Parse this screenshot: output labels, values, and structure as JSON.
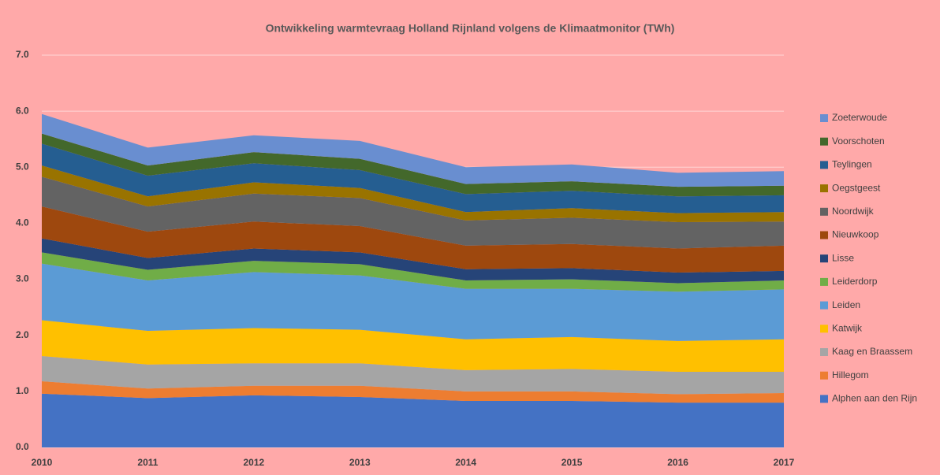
{
  "chart_data": {
    "type": "stacked-area",
    "title": "Ontwikkeling warmtevraag Holland Rijnland volgens de Klimaatmonitor (TWh)",
    "categories": [
      "2010",
      "2011",
      "2012",
      "2013",
      "2014",
      "2015",
      "2016",
      "2017"
    ],
    "series": [
      {
        "name": "Alphen aan den Rijn",
        "color": "#4472c4",
        "values": [
          0.96,
          0.88,
          0.93,
          0.9,
          0.83,
          0.83,
          0.8,
          0.8
        ]
      },
      {
        "name": "Hillegom",
        "color": "#ed7d31",
        "values": [
          0.22,
          0.17,
          0.17,
          0.2,
          0.17,
          0.17,
          0.15,
          0.17
        ]
      },
      {
        "name": "Kaag en Braassem",
        "color": "#a5a5a5",
        "values": [
          0.45,
          0.43,
          0.4,
          0.4,
          0.38,
          0.4,
          0.4,
          0.38
        ]
      },
      {
        "name": "Katwijk",
        "color": "#ffc000",
        "values": [
          0.64,
          0.6,
          0.63,
          0.6,
          0.55,
          0.57,
          0.55,
          0.58
        ]
      },
      {
        "name": "Leiden",
        "color": "#5b9bd5",
        "values": [
          1.01,
          0.9,
          1.0,
          0.97,
          0.9,
          0.86,
          0.88,
          0.89
        ]
      },
      {
        "name": "Leiderdorp",
        "color": "#70ad47",
        "values": [
          0.2,
          0.19,
          0.2,
          0.2,
          0.15,
          0.17,
          0.15,
          0.16
        ]
      },
      {
        "name": "Lisse",
        "color": "#264478",
        "values": [
          0.25,
          0.21,
          0.22,
          0.21,
          0.2,
          0.2,
          0.19,
          0.17
        ]
      },
      {
        "name": "Nieuwkoop",
        "color": "#9e480e",
        "values": [
          0.57,
          0.47,
          0.48,
          0.47,
          0.42,
          0.43,
          0.43,
          0.45
        ]
      },
      {
        "name": "Noordwijk",
        "color": "#636363",
        "values": [
          0.53,
          0.45,
          0.5,
          0.5,
          0.45,
          0.47,
          0.47,
          0.43
        ]
      },
      {
        "name": "Oegstgeest",
        "color": "#997300",
        "values": [
          0.2,
          0.18,
          0.2,
          0.18,
          0.15,
          0.17,
          0.16,
          0.17
        ]
      },
      {
        "name": "Teylingen",
        "color": "#255e91",
        "values": [
          0.39,
          0.37,
          0.34,
          0.32,
          0.32,
          0.31,
          0.3,
          0.3
        ]
      },
      {
        "name": "Voorschoten",
        "color": "#43682b",
        "values": [
          0.18,
          0.18,
          0.2,
          0.2,
          0.18,
          0.17,
          0.17,
          0.17
        ]
      },
      {
        "name": "Zoeterwoude",
        "color": "#698ed0",
        "values": [
          0.35,
          0.32,
          0.3,
          0.32,
          0.3,
          0.3,
          0.25,
          0.26
        ]
      }
    ],
    "ylim": [
      0,
      7
    ],
    "yticks": [
      {
        "value": 0,
        "label": "0.0"
      },
      {
        "value": 1,
        "label": "1.0"
      },
      {
        "value": 2,
        "label": "2.0"
      },
      {
        "value": 3,
        "label": "3.0"
      },
      {
        "value": 4,
        "label": "4.0"
      },
      {
        "value": 5,
        "label": "5.0"
      },
      {
        "value": 6,
        "label": "6.0"
      },
      {
        "value": 7,
        "label": "7.0"
      }
    ],
    "grid": true,
    "legend": "right"
  }
}
